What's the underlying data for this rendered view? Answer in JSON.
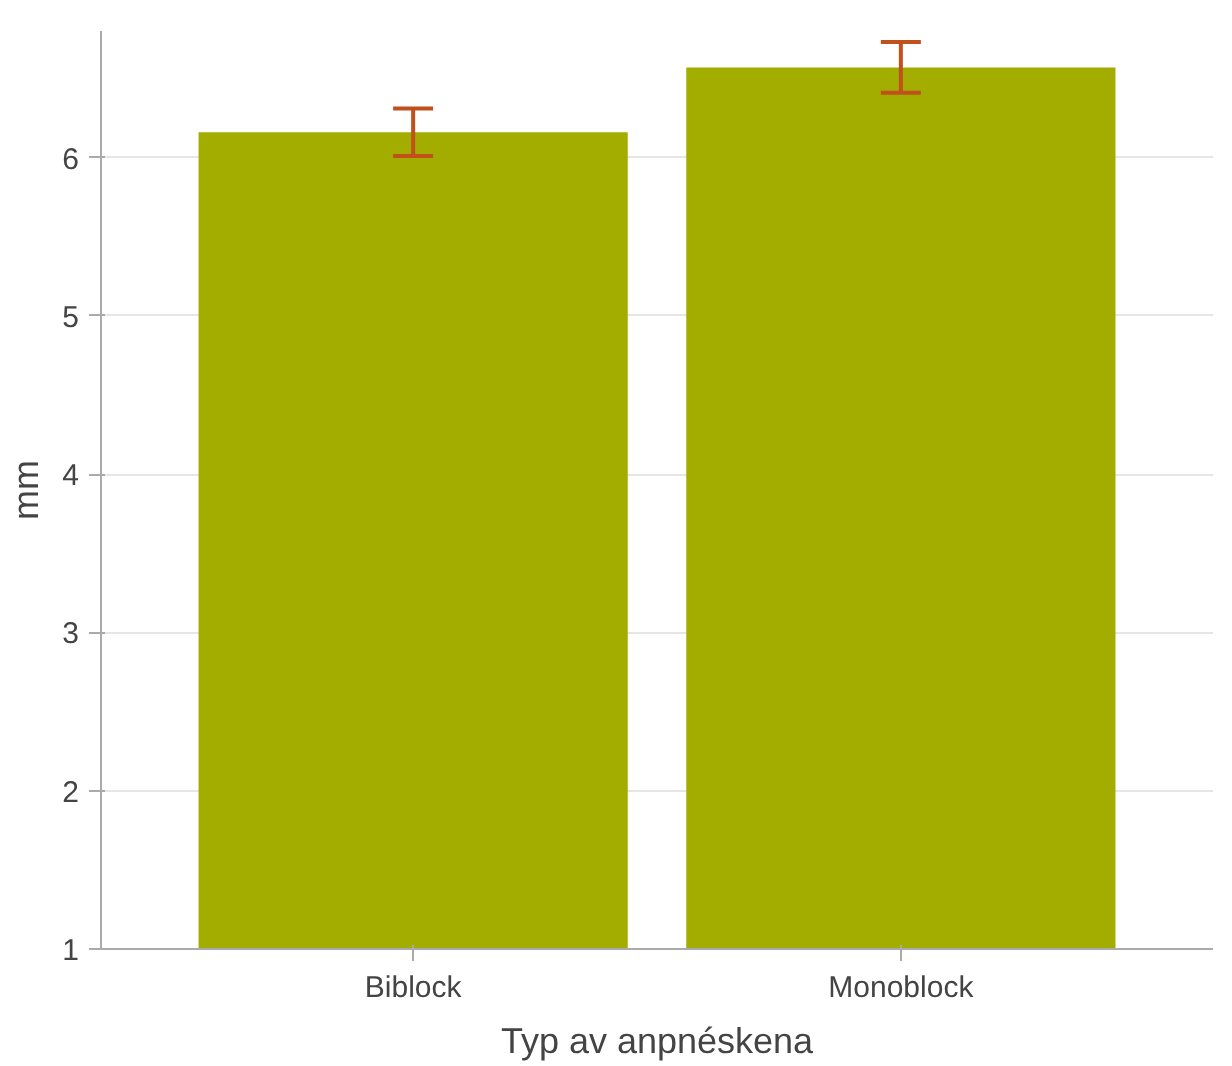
{
  "chart_data": {
    "type": "bar",
    "xlabel": "Typ av anpnéskena",
    "ylabel": "mm",
    "categories": [
      "Biblock",
      "Monoblock"
    ],
    "values": [
      6.16,
      6.57
    ],
    "errors": [
      0.15,
      0.16
    ],
    "color": "#a3ad00",
    "ylim": [
      1,
      6.8
    ],
    "yticks": [
      1,
      2,
      3,
      4,
      5,
      6
    ],
    "grid": "y"
  }
}
